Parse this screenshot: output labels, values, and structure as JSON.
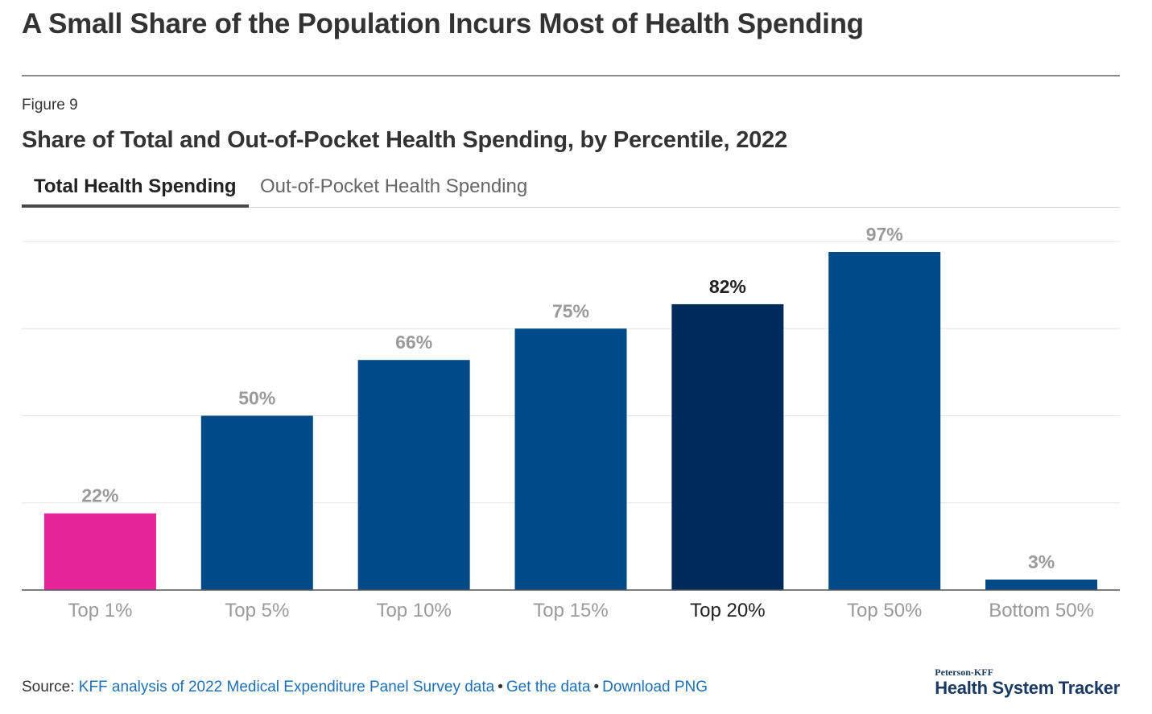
{
  "page": {
    "headline": "A Small Share of the Population Incurs Most of Health Spending",
    "figure_label": "Figure 9",
    "chart_title": "Share of Total and Out-of-Pocket Health Spending, by Percentile, 2022"
  },
  "tabs": [
    {
      "label": "Total Health Spending",
      "active": true
    },
    {
      "label": "Out-of-Pocket Health Spending",
      "active": false
    }
  ],
  "chart_data": {
    "type": "bar",
    "title": "Share of Total and Out-of-Pocket Health Spending, by Percentile, 2022",
    "series_name": "Total Health Spending",
    "categories": [
      "Top 1%",
      "Top 5%",
      "Top 10%",
      "Top 15%",
      "Top 20%",
      "Top 50%",
      "Bottom 50%"
    ],
    "values": [
      22,
      50,
      66,
      75,
      82,
      97,
      3
    ],
    "value_labels": [
      "22%",
      "50%",
      "66%",
      "75%",
      "82%",
      "97%",
      "3%"
    ],
    "highlighted_index": 4,
    "ylim": [
      0,
      100
    ],
    "gridlines": [
      25,
      50,
      75,
      100
    ],
    "xlabel": "",
    "ylabel": "",
    "colors": {
      "default": "#004b87",
      "first": "#e6259b",
      "highlighted": "#002a5c",
      "label_default": "#9a9a9a",
      "label_highlighted": "#222222",
      "grid": "#e3e3e3",
      "axis": "#555555"
    }
  },
  "footer": {
    "source_prefix": "Source:",
    "source_link": "KFF analysis of 2022 Medical Expenditure Panel Survey data",
    "separator": "•",
    "get_data": "Get the data",
    "download": "Download PNG"
  },
  "brand": {
    "top": "Peterson-KFF",
    "main": "Health System Tracker"
  }
}
